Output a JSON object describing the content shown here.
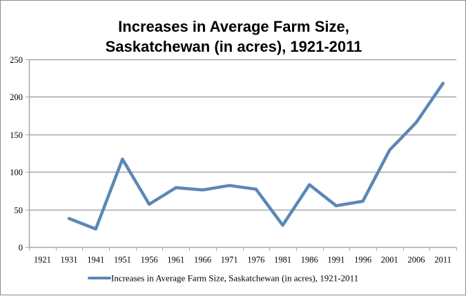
{
  "chart_data": {
    "type": "line",
    "title_lines": [
      "Increases in Average Farm Size,",
      "Saskatchewan (in acres), 1921-2011"
    ],
    "title": "Increases in Average Farm Size, Saskatchewan (in acres), 1921-2011",
    "xlabel": "",
    "ylabel": "",
    "categories": [
      "1921",
      "1931",
      "1941",
      "1951",
      "1956",
      "1961",
      "1966",
      "1971",
      "1976",
      "1981",
      "1986",
      "1991",
      "1996",
      "2001",
      "2006",
      "2011"
    ],
    "series": [
      {
        "name": "Increases in Average Farm Size, Saskatchewan (in acres), 1921-2011",
        "color": "#5b87b7",
        "values": [
          null,
          38,
          24,
          117,
          57,
          79,
          76,
          82,
          77,
          29,
          83,
          55,
          61,
          129,
          166,
          218
        ]
      }
    ],
    "ylim": [
      0,
      250
    ],
    "yticks": [
      0,
      50,
      100,
      150,
      200,
      250
    ],
    "ytick_labels": [
      "0",
      "50",
      "100",
      "150",
      "200",
      "250"
    ],
    "grid": true,
    "legend": {
      "position": "bottom",
      "entries": [
        "Increases in Average Farm Size, Saskatchewan (in acres), 1921-2011"
      ]
    },
    "colors": {
      "line": "#5b87b7",
      "grid": "#a6a6a6",
      "axis": "#a6a6a6",
      "border": "#8a8a8a"
    }
  }
}
